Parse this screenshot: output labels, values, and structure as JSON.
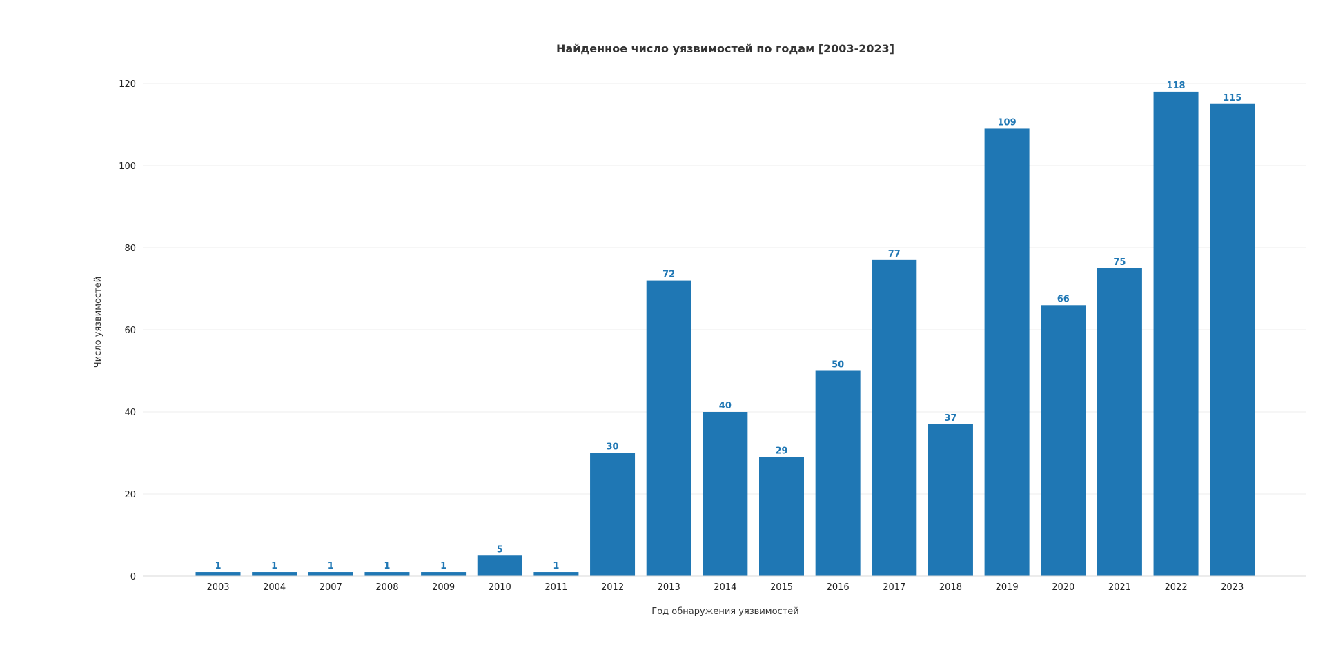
{
  "chart_data": {
    "type": "bar",
    "title": "Найденное число уязвимостей по годам [2003-2023]",
    "xlabel": "Год обнаружения уязвимостей",
    "ylabel": "Число уязвимостей",
    "categories": [
      "2003",
      "2004",
      "2007",
      "2008",
      "2009",
      "2010",
      "2011",
      "2012",
      "2013",
      "2014",
      "2015",
      "2016",
      "2017",
      "2018",
      "2019",
      "2020",
      "2021",
      "2022",
      "2023"
    ],
    "values": [
      1,
      1,
      1,
      1,
      1,
      5,
      1,
      30,
      72,
      40,
      29,
      50,
      77,
      37,
      109,
      66,
      75,
      118,
      115
    ],
    "ylim": [
      0,
      125
    ],
    "yticks": [
      0,
      20,
      40,
      60,
      80,
      100,
      120
    ],
    "grid": true,
    "legend": "none",
    "colors": {
      "bar": "#1f77b4",
      "label": "#1f77b4",
      "grid": "#ececec"
    }
  }
}
